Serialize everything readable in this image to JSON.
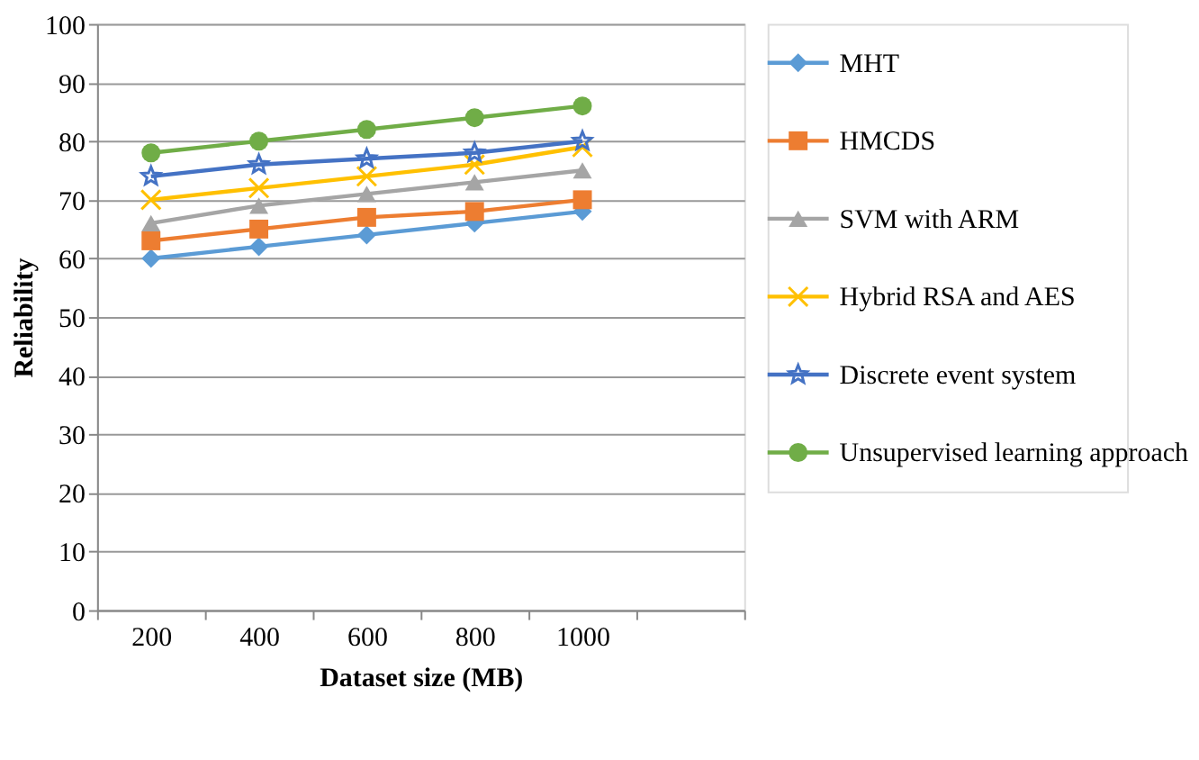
{
  "chart_data": {
    "type": "line",
    "xlabel": "Dataset size (MB)",
    "ylabel": "Reliability",
    "categories": [
      "200",
      "400",
      "600",
      "800",
      "1000",
      null
    ],
    "series": [
      {
        "name": "MHT",
        "color": "#5b9bd5",
        "marker": "diamond",
        "values": [
          60,
          62,
          64,
          66,
          68,
          null
        ]
      },
      {
        "name": "HMCDS",
        "color": "#ed7d31",
        "marker": "square",
        "values": [
          63,
          65,
          67,
          68,
          70,
          null
        ]
      },
      {
        "name": "SVM with ARM",
        "color": "#a5a5a5",
        "marker": "triangle",
        "values": [
          66,
          69,
          71,
          73,
          75,
          null
        ]
      },
      {
        "name": "Hybrid RSA and AES",
        "color": "#ffc000",
        "marker": "cross",
        "values": [
          70,
          72,
          74,
          76,
          79,
          null
        ]
      },
      {
        "name": "Discrete event system",
        "color": "#4472c4",
        "marker": "star",
        "values": [
          74,
          76,
          77,
          78,
          80,
          null
        ]
      },
      {
        "name": "Unsupervised learning approach",
        "color": "#70ad47",
        "marker": "circle",
        "values": [
          78,
          80,
          82,
          84,
          86,
          null
        ]
      }
    ],
    "ylim": [
      0,
      100
    ],
    "yticks": [
      0,
      10,
      20,
      30,
      40,
      50,
      60,
      70,
      80,
      90,
      100
    ],
    "grid": "y",
    "legend": "right"
  }
}
